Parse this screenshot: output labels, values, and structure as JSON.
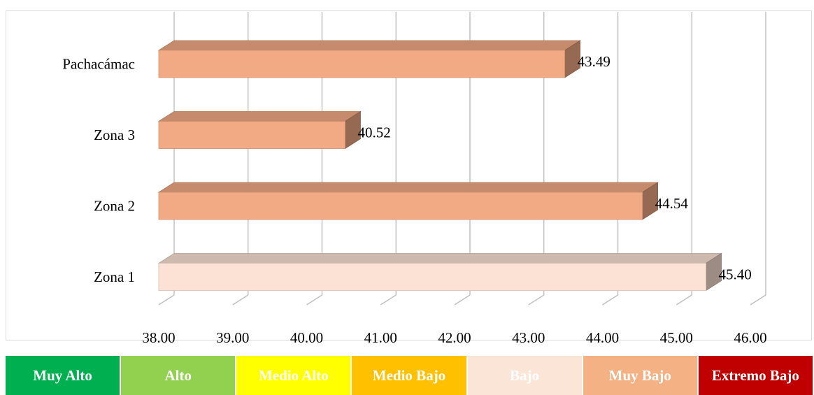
{
  "chart_data": {
    "type": "bar",
    "orientation": "horizontal",
    "categories": [
      "Pachacámac",
      "Zona 3",
      "Zona 2",
      "Zona 1"
    ],
    "values": [
      43.49,
      40.52,
      44.54,
      45.4
    ],
    "data_labels": [
      "43.49",
      "40.52",
      "44.54",
      "45.40"
    ],
    "bar_colors": [
      "#f2aa84",
      "#f2aa84",
      "#f2aa84",
      "#fbe2d5"
    ],
    "xlim": [
      38.0,
      46.0
    ],
    "xticks": [
      "38.00",
      "39.00",
      "40.00",
      "41.00",
      "42.00",
      "43.00",
      "44.00",
      "45.00",
      "46.00"
    ],
    "grid": true,
    "title": "",
    "xlabel": "",
    "ylabel": ""
  },
  "legend": [
    {
      "label": "Muy Alto",
      "bg": "#00b050",
      "color": "#ffffff"
    },
    {
      "label": "Alto",
      "bg": "#92d050",
      "color": "#ffffff"
    },
    {
      "label": "Medio Alto",
      "bg": "#ffff00",
      "color": "#ffffff"
    },
    {
      "label": "Medio Bajo",
      "bg": "#ffc000",
      "color": "#ffffff"
    },
    {
      "label": "Bajo",
      "bg": "#fbe5d6",
      "color": "#ffffff"
    },
    {
      "label": "Muy Bajo",
      "bg": "#f4b183",
      "color": "#ffffff"
    },
    {
      "label": "Extremo Bajo",
      "bg": "#c00000",
      "color": "#ffffff"
    }
  ]
}
